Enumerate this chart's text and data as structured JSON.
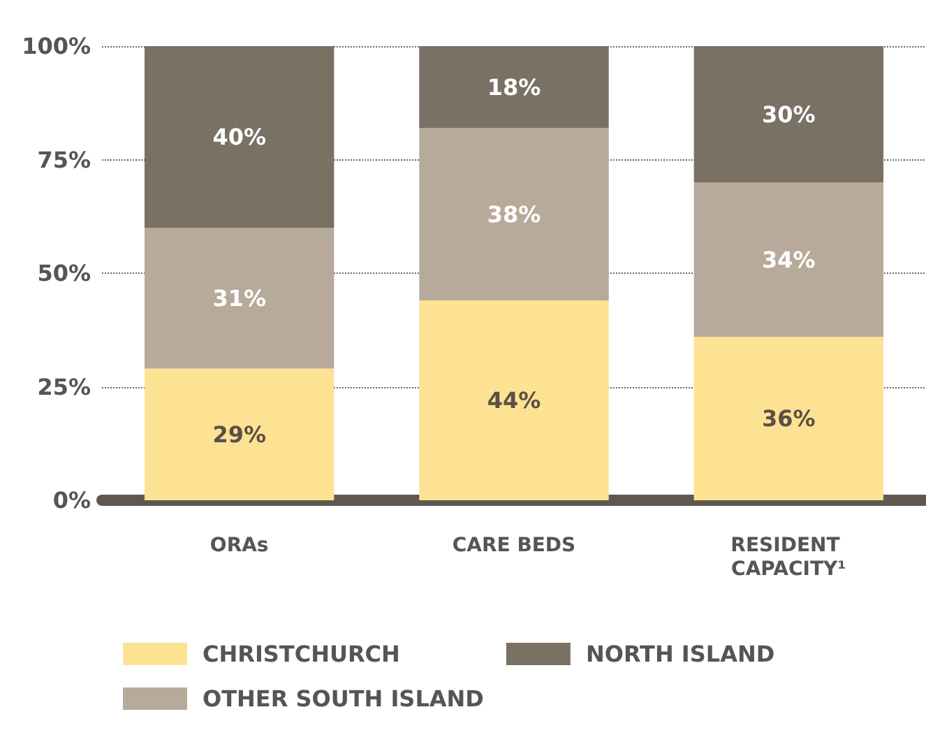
{
  "chart_data": {
    "type": "bar",
    "stacked": true,
    "categories": [
      "ORAs",
      "CARE BEDS",
      "RESIDENT CAPACITY¹"
    ],
    "series": [
      {
        "name": "CHRISTCHURCH",
        "color": "#fee293",
        "values": [
          29,
          44,
          36
        ],
        "value_labels": [
          "29%",
          "44%",
          "36%"
        ]
      },
      {
        "name": "OTHER SOUTH ISLAND",
        "color": "#b8aa9a",
        "values": [
          31,
          38,
          34
        ],
        "value_labels": [
          "31%",
          "38%",
          "34%"
        ]
      },
      {
        "name": "NORTH ISLAND",
        "color": "#7a7165",
        "values": [
          40,
          18,
          30
        ],
        "value_labels": [
          "40%",
          "18%",
          "30%"
        ]
      }
    ],
    "ylim": [
      0,
      100
    ],
    "yticks": [
      {
        "value": 0,
        "label": "0%"
      },
      {
        "value": 25,
        "label": "25%"
      },
      {
        "value": 50,
        "label": "50%"
      },
      {
        "value": 75,
        "label": "75%"
      },
      {
        "value": 100,
        "label": "100%"
      }
    ],
    "grid": "y",
    "legend": "bottom left"
  }
}
